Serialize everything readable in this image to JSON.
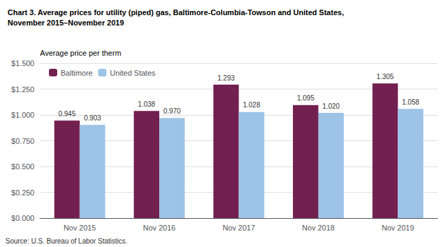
{
  "chart_data": {
    "type": "bar",
    "title": "Chart 3. Average prices for utility (piped) gas, Baltimore-Columbia-Towson and United States,\nNovember 2015–November 2019",
    "ylabel": "Average price per therm",
    "annotations": [
      "Source: U.S. Bureau of Labor Statistics."
    ],
    "categories": [
      "Nov 2015",
      "Nov 2016",
      "Nov 2017",
      "Nov 2018",
      "Nov 2019"
    ],
    "series": [
      {
        "name": "Baltimore",
        "color": "#722050",
        "values": [
          0.945,
          1.038,
          1.293,
          1.095,
          1.305
        ],
        "value_labels": [
          "0.945",
          "1.038",
          "1.293",
          "1.095",
          "1.305"
        ]
      },
      {
        "name": "United States",
        "color": "#9DC3E6",
        "values": [
          0.903,
          0.97,
          1.028,
          1.02,
          1.058
        ],
        "value_labels": [
          "0.903",
          "0.970",
          "1.028",
          "1.020",
          "1.058"
        ]
      }
    ],
    "ylim": [
      0,
      1.5
    ],
    "yticks": [
      {
        "value": 0.0,
        "label": "$0.000"
      },
      {
        "value": 0.25,
        "label": "$0.250"
      },
      {
        "value": 0.5,
        "label": "$0.500"
      },
      {
        "value": 0.75,
        "label": "$0.750"
      },
      {
        "value": 1.0,
        "label": "$1.000"
      },
      {
        "value": 1.25,
        "label": "$1.250"
      },
      {
        "value": 1.5,
        "label": "$1.500"
      }
    ],
    "grid": true,
    "legend": "upper left",
    "data_labels": true
  }
}
